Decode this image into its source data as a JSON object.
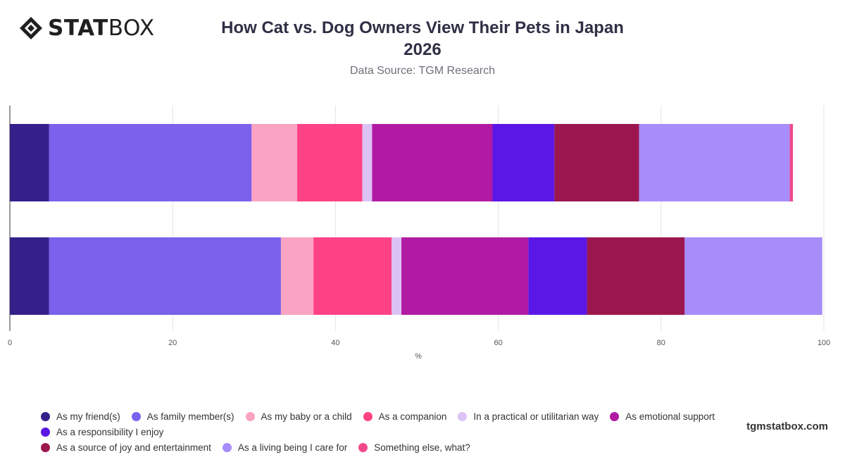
{
  "logo": {
    "bold_part": "STAT",
    "light_part": "BOX"
  },
  "footer": {
    "brand": "tgmstatbox.com"
  },
  "chart_data": {
    "type": "bar",
    "orientation": "horizontal",
    "stacked": true,
    "title_line1": "How Cat vs. Dog Owners View Their Pets in Japan",
    "title_line2": "2026",
    "subtitle": "Data Source: TGM Research",
    "xlabel": "%",
    "xlim": [
      0,
      100
    ],
    "xticks": [
      "0",
      "20",
      "40",
      "60",
      "80",
      "100"
    ],
    "grid": true,
    "legend_position": "bottom",
    "categories": [
      "",
      ""
    ],
    "series": [
      {
        "name": "As my friend(s)",
        "color": "#35208a",
        "values": [
          4.8,
          4.8
        ]
      },
      {
        "name": "As family member(s)",
        "color": "#7b61eb",
        "values": [
          24.9,
          28.5
        ]
      },
      {
        "name": "As my baby or a child",
        "color": "#fba3c2",
        "values": [
          5.6,
          4.0
        ]
      },
      {
        "name": "As a companion",
        "color": "#fd4286",
        "values": [
          8.0,
          9.6
        ]
      },
      {
        "name": "In a practical or utilitarian way",
        "color": "#dcc3f6",
        "values": [
          1.2,
          1.2
        ]
      },
      {
        "name": "As emotional support",
        "color": "#b11aa3",
        "values": [
          14.8,
          15.6
        ]
      },
      {
        "name": "As a responsibility I enjoy",
        "color": "#5b17e6",
        "values": [
          7.6,
          7.2
        ]
      },
      {
        "name": "As a source of joy and entertainment",
        "color": "#9c1650",
        "values": [
          10.4,
          12.0
        ]
      },
      {
        "name": "As a living being I care for",
        "color": "#a78cfa",
        "values": [
          18.5,
          16.9
        ]
      },
      {
        "name": "Something else, what?",
        "color": "#f2498e",
        "values": [
          0.4,
          0.0
        ]
      }
    ]
  }
}
